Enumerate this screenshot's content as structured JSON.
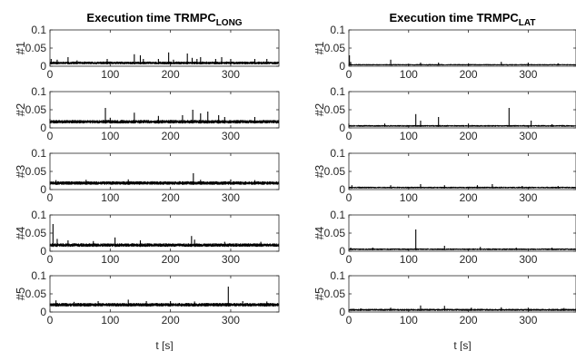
{
  "chart_data": [
    {
      "type": "line",
      "title": {
        "main": "Execution time TRMPC",
        "sub": "LONG"
      },
      "xlabel": "t [s]",
      "xlim": [
        0,
        380
      ],
      "xticks": [
        0,
        100,
        200,
        300
      ],
      "ylim": [
        0,
        0.1
      ],
      "yticks": [
        0,
        0.05,
        0.1
      ],
      "series": [
        {
          "name": "#1",
          "baseline_low": 0.005,
          "baseline_high": 0.013,
          "spikes": [
            [
              2,
              0.02
            ],
            [
              12,
              0.018
            ],
            [
              30,
              0.025
            ],
            [
              45,
              0.016
            ],
            [
              95,
              0.02
            ],
            [
              140,
              0.033
            ],
            [
              150,
              0.03
            ],
            [
              155,
              0.02
            ],
            [
              180,
              0.02
            ],
            [
              197,
              0.038
            ],
            [
              205,
              0.018
            ],
            [
              228,
              0.035
            ],
            [
              236,
              0.023
            ],
            [
              244,
              0.02
            ],
            [
              250,
              0.025
            ],
            [
              275,
              0.02
            ],
            [
              285,
              0.025
            ],
            [
              300,
              0.02
            ],
            [
              340,
              0.02
            ],
            [
              360,
              0.02
            ]
          ]
        },
        {
          "name": "#2",
          "baseline_low": 0.012,
          "baseline_high": 0.022,
          "spikes": [
            [
              0,
              0.025
            ],
            [
              92,
              0.055
            ],
            [
              100,
              0.028
            ],
            [
              140,
              0.042
            ],
            [
              180,
              0.033
            ],
            [
              220,
              0.035
            ],
            [
              237,
              0.05
            ],
            [
              250,
              0.04
            ],
            [
              262,
              0.045
            ],
            [
              280,
              0.035
            ],
            [
              290,
              0.03
            ],
            [
              340,
              0.03
            ]
          ]
        },
        {
          "name": "#3",
          "baseline_low": 0.013,
          "baseline_high": 0.023,
          "spikes": [
            [
              10,
              0.026
            ],
            [
              60,
              0.027
            ],
            [
              130,
              0.028
            ],
            [
              238,
              0.045
            ],
            [
              250,
              0.027
            ],
            [
              300,
              0.028
            ],
            [
              340,
              0.026
            ]
          ]
        },
        {
          "name": "#4",
          "baseline_low": 0.012,
          "baseline_high": 0.022,
          "spikes": [
            [
              5,
              0.075
            ],
            [
              12,
              0.034
            ],
            [
              30,
              0.03
            ],
            [
              72,
              0.028
            ],
            [
              108,
              0.038
            ],
            [
              150,
              0.03
            ],
            [
              235,
              0.042
            ],
            [
              240,
              0.032
            ],
            [
              290,
              0.026
            ],
            [
              350,
              0.026
            ]
          ]
        },
        {
          "name": "#5",
          "baseline_low": 0.015,
          "baseline_high": 0.025,
          "spikes": [
            [
              10,
              0.032
            ],
            [
              40,
              0.028
            ],
            [
              80,
              0.03
            ],
            [
              130,
              0.034
            ],
            [
              160,
              0.03
            ],
            [
              200,
              0.03
            ],
            [
              240,
              0.029
            ],
            [
              296,
              0.07
            ],
            [
              320,
              0.03
            ],
            [
              360,
              0.029
            ]
          ]
        }
      ]
    },
    {
      "type": "line",
      "title": {
        "main": "Execution time TRMPC",
        "sub": "LAT"
      },
      "xlabel": "t [s]",
      "xlim": [
        0,
        380
      ],
      "xticks": [
        0,
        100,
        200,
        300
      ],
      "ylim": [
        0,
        0.1
      ],
      "yticks": [
        0,
        0.05,
        0.1
      ],
      "series": [
        {
          "name": "#1",
          "baseline_low": 0.002,
          "baseline_high": 0.006,
          "spikes": [
            [
              1,
              0.03
            ],
            [
              3,
              0.012
            ],
            [
              70,
              0.018
            ],
            [
              120,
              0.01
            ],
            [
              150,
              0.01
            ],
            [
              200,
              0.008
            ],
            [
              255,
              0.012
            ],
            [
              300,
              0.01
            ],
            [
              350,
              0.008
            ]
          ]
        },
        {
          "name": "#2",
          "baseline_low": 0.003,
          "baseline_high": 0.008,
          "spikes": [
            [
              0,
              0.012
            ],
            [
              60,
              0.012
            ],
            [
              112,
              0.038
            ],
            [
              120,
              0.02
            ],
            [
              150,
              0.03
            ],
            [
              200,
              0.012
            ],
            [
              268,
              0.055
            ],
            [
              305,
              0.02
            ],
            [
              340,
              0.01
            ]
          ]
        },
        {
          "name": "#3",
          "baseline_low": 0.003,
          "baseline_high": 0.008,
          "spikes": [
            [
              5,
              0.012
            ],
            [
              70,
              0.012
            ],
            [
              120,
              0.015
            ],
            [
              160,
              0.012
            ],
            [
              215,
              0.012
            ],
            [
              240,
              0.015
            ],
            [
              290,
              0.01
            ],
            [
              350,
              0.01
            ]
          ]
        },
        {
          "name": "#4",
          "baseline_low": 0.003,
          "baseline_high": 0.008,
          "spikes": [
            [
              3,
              0.01
            ],
            [
              40,
              0.01
            ],
            [
              112,
              0.06
            ],
            [
              160,
              0.015
            ],
            [
              220,
              0.012
            ],
            [
              280,
              0.01
            ],
            [
              340,
              0.01
            ]
          ]
        },
        {
          "name": "#5",
          "baseline_low": 0.003,
          "baseline_high": 0.009,
          "spikes": [
            [
              20,
              0.01
            ],
            [
              70,
              0.012
            ],
            [
              120,
              0.018
            ],
            [
              160,
              0.017
            ],
            [
              205,
              0.012
            ],
            [
              255,
              0.013
            ],
            [
              300,
              0.012
            ],
            [
              360,
              0.011
            ]
          ]
        }
      ]
    }
  ]
}
